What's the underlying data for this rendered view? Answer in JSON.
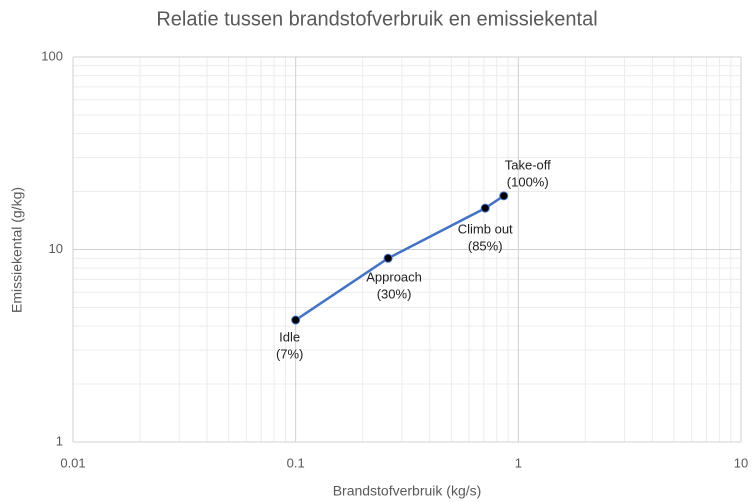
{
  "chart_data": {
    "type": "line",
    "log_scale": {
      "x": true,
      "y": true
    },
    "title": "Relatie tussen brandstofverbruik en emissiekental",
    "x_label": "Brandstofverbruik (kg/s)",
    "y_label": "Emissiekental (g/kg)",
    "series": [
      {
        "color": "#4472c4",
        "marker_color": "#000000",
        "x": [
          0.1,
          0.26,
          0.71,
          0.86
        ],
        "values": [
          4.3,
          9.0,
          16.4,
          19.0
        ],
        "point_labels": [
          [
            "Idle",
            "(7%)"
          ],
          [
            "Approach",
            "(30%)"
          ],
          [
            "Climb out",
            "(85%)"
          ],
          [
            "Take-off",
            "(100%)"
          ]
        ]
      }
    ],
    "xlim": [
      0.01,
      10
    ],
    "xticks": [
      0.01,
      0.1,
      1,
      10
    ],
    "ylim": [
      1,
      100
    ],
    "yticks": [
      1,
      10,
      100
    ],
    "grid": true,
    "minor_grid": true
  }
}
